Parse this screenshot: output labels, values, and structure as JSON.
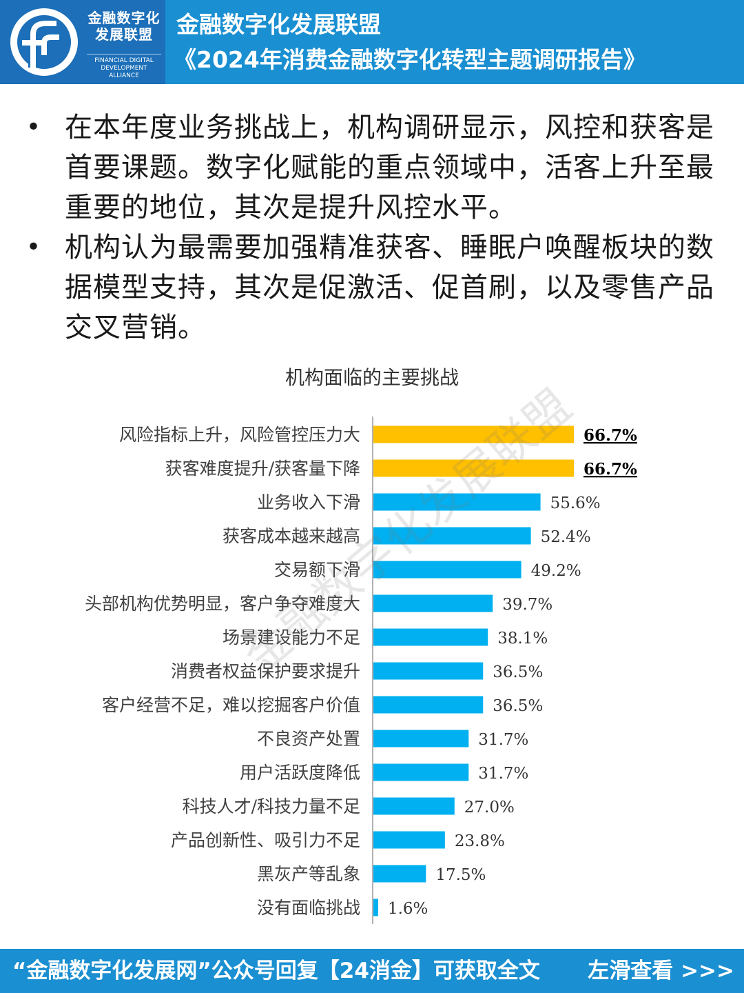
{
  "header": {
    "logo_cn": "金融数字化\n发展联盟",
    "logo_en": "FINANCIAL DIGITAL\nDEVELOPMENT ALLIANCE",
    "title_line1": "金融数字化发展联盟",
    "title_line2": "《2024年消费金融数字化转型主题调研报告》"
  },
  "bullets": [
    {
      "marker": "•",
      "text": "在本年度业务挑战上，机构调研显示，风控和获客是首要课题。数字化赋能的重点领域中，活客上升至最重要的地位，其次是提升风控水平。"
    },
    {
      "marker": "•",
      "text": "机构认为最需要加强精准获客、睡眠户唤醒板块的数据模型支持，其次是促激活、促首刷，以及零售产品交叉营销。"
    }
  ],
  "watermark": "金融数字化发展联盟",
  "colors": {
    "header_bg": "#1a8fd1",
    "logo_bg": "#1c6fb8",
    "highlight": "#ffc000",
    "bar": "#00b0f0"
  },
  "chart_data": {
    "type": "bar",
    "orientation": "horizontal",
    "title": "机构面临的主要挑战",
    "categories": [
      "风险指标上升，风险管控压力大",
      "获客难度提升/获客量下降",
      "业务收入下滑",
      "获客成本越来越高",
      "交易额下滑",
      "头部机构优势明显，客户争夺难度大",
      "场景建设能力不足",
      "消费者权益保护要求提升",
      "客户经营不足，难以挖掘客户价值",
      "不良资产处置",
      "用户活跃度降低",
      "科技人才/科技力量不足",
      "产品创新性、吸引力不足",
      "黑灰产等乱象",
      "没有面临挑战"
    ],
    "values": [
      66.7,
      66.7,
      55.6,
      52.4,
      49.2,
      39.7,
      38.1,
      36.5,
      36.5,
      31.7,
      31.7,
      27.0,
      23.8,
      17.5,
      1.6
    ],
    "labels": [
      "66.7%",
      "66.7%",
      "55.6%",
      "52.4%",
      "49.2%",
      "39.7%",
      "38.1%",
      "36.5%",
      "36.5%",
      "31.7%",
      "31.7%",
      "27.0%",
      "23.8%",
      "17.5%",
      "1.6%"
    ],
    "highlighted": [
      true,
      true,
      false,
      false,
      false,
      false,
      false,
      false,
      false,
      false,
      false,
      false,
      false,
      false,
      false
    ],
    "xlim": [
      0,
      100
    ],
    "grid": false,
    "legend": "none"
  },
  "footer": {
    "text": "“金融数字化发展网”公众号回复【24消金】可获取全文",
    "nav": "左滑查看 >>>"
  }
}
